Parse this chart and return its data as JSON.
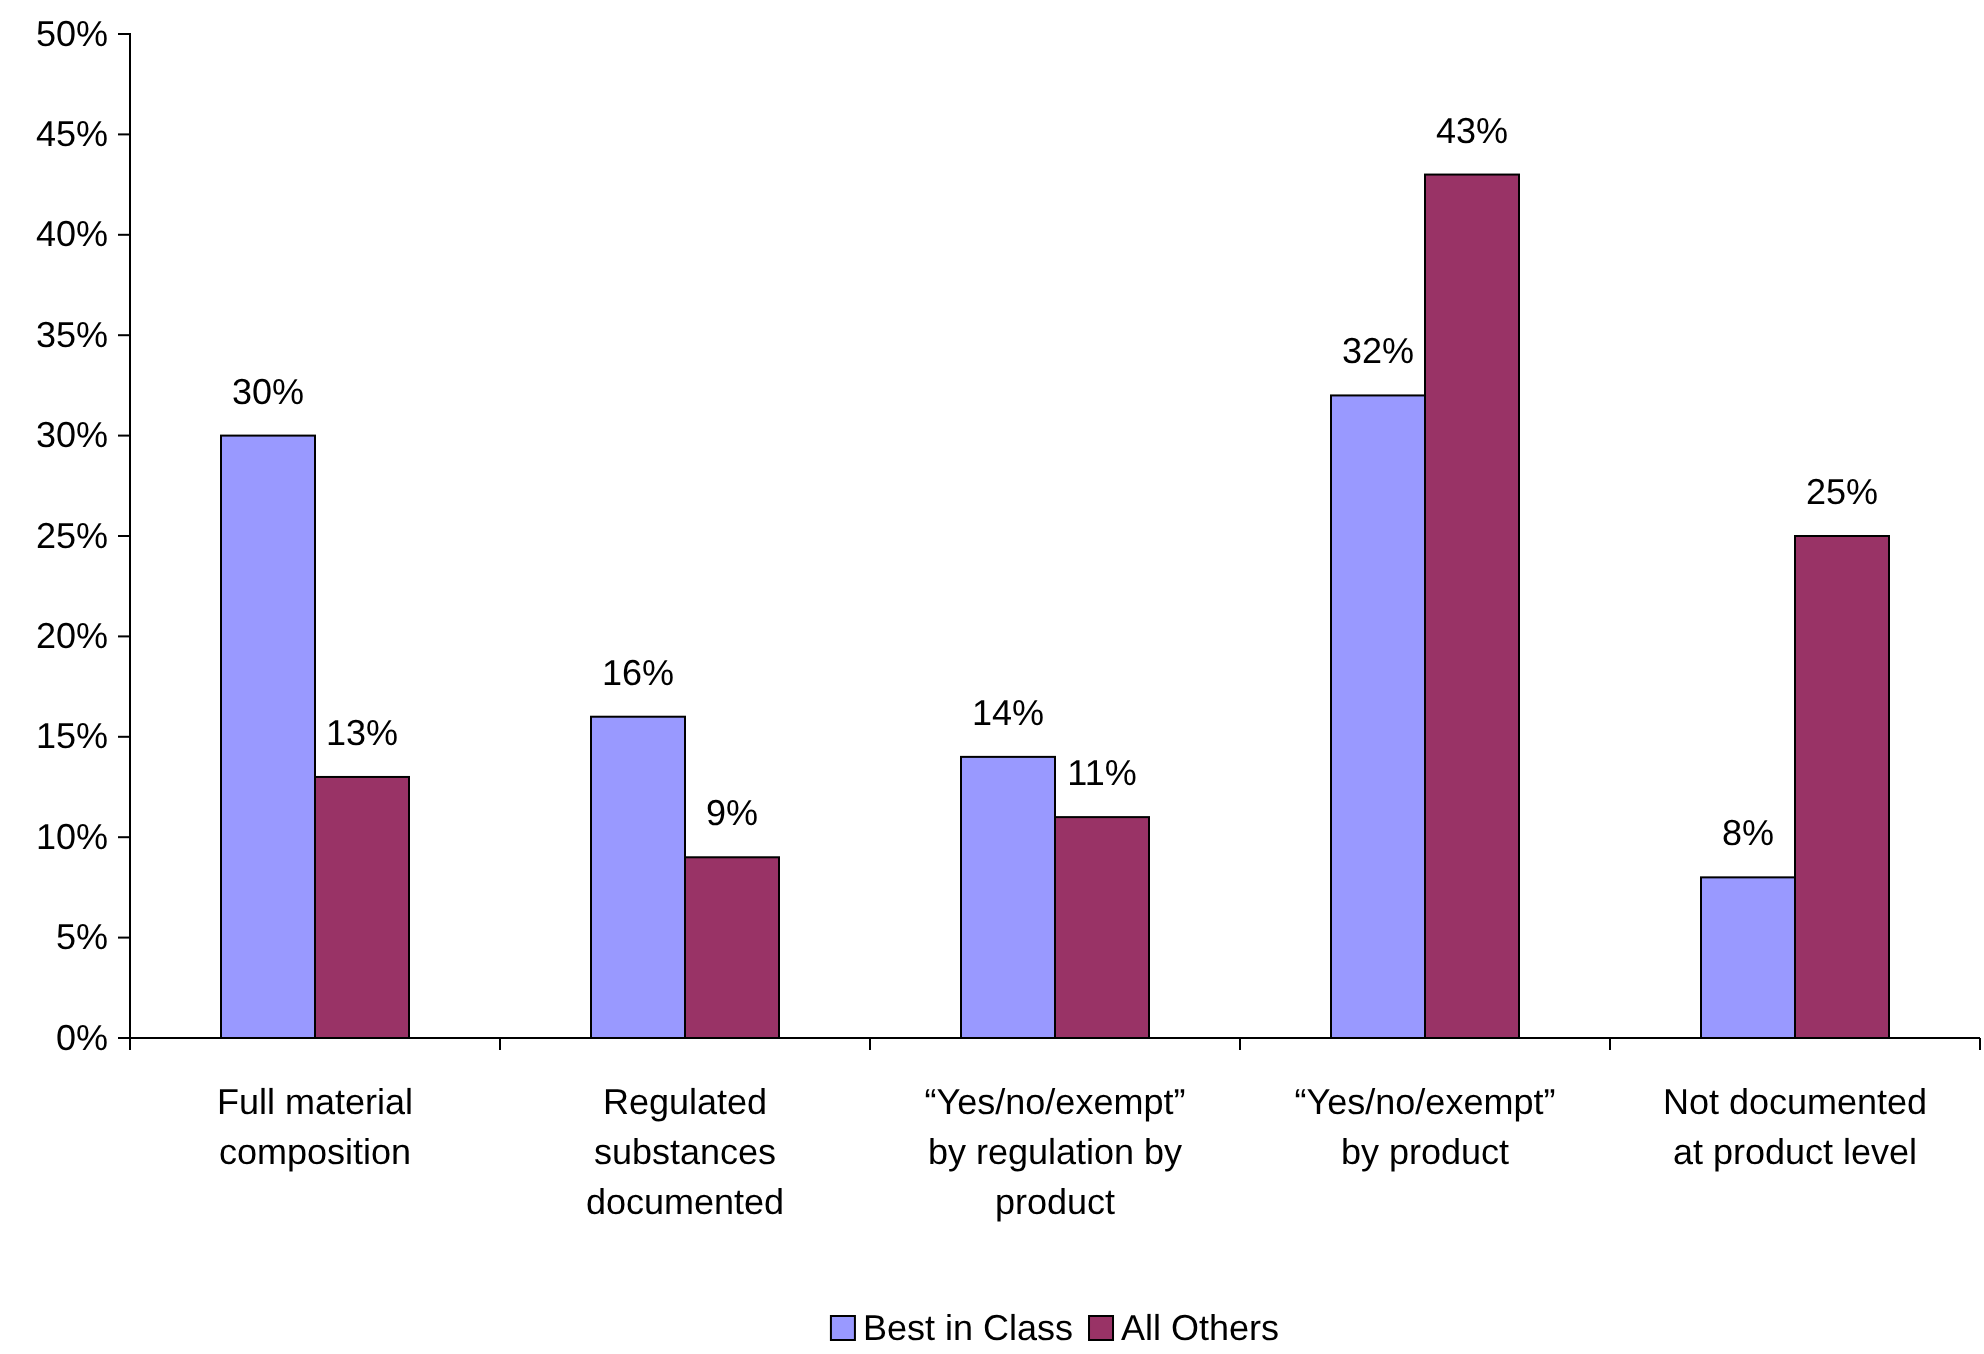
{
  "chart_data": {
    "type": "bar",
    "categories": [
      "Full material composition",
      "Regulated substances documented",
      "“Yes/no/exempt” by regulation by product",
      "“Yes/no/exempt” by product",
      "Not documented at product level"
    ],
    "series": [
      {
        "name": "Best in Class",
        "color": "#9999ff",
        "values": [
          30,
          16,
          14,
          32,
          8
        ]
      },
      {
        "name": "All Others",
        "color": "#993366",
        "values": [
          13,
          9,
          11,
          43,
          25
        ]
      }
    ],
    "ylim": [
      0,
      50
    ],
    "yticks": [
      {
        "value": 0,
        "label": "0%"
      },
      {
        "value": 5,
        "label": "5%"
      },
      {
        "value": 10,
        "label": "10%"
      },
      {
        "value": 15,
        "label": "15%"
      },
      {
        "value": 20,
        "label": "20%"
      },
      {
        "value": 25,
        "label": "25%"
      },
      {
        "value": 30,
        "label": "30%"
      },
      {
        "value": 35,
        "label": "35%"
      },
      {
        "value": 40,
        "label": "40%"
      },
      {
        "value": 45,
        "label": "45%"
      },
      {
        "value": 50,
        "label": "50%"
      }
    ],
    "value_labels": [
      [
        "30%",
        "16%",
        "14%",
        "32%",
        "8%"
      ],
      [
        "13%",
        "9%",
        "11%",
        "43%",
        "25%"
      ]
    ],
    "legend": "bottom",
    "grid": false
  }
}
